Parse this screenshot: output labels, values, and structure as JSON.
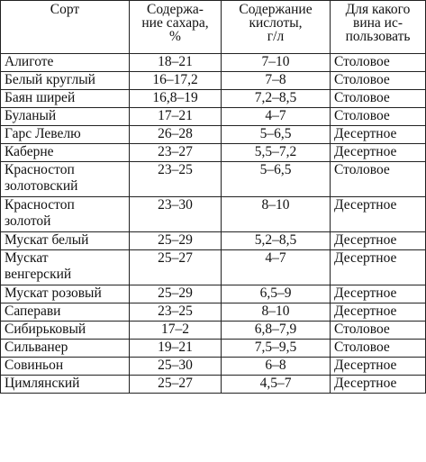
{
  "headers": {
    "variety": "Сорт",
    "sugar": "Содержа-\nние сахара,\n%",
    "acid": "Содержание\nкислоты,\nг/л",
    "wine": "Для какого\nвина ис-\nпользовать"
  },
  "rows": [
    {
      "variety": "Алиготе",
      "sugar": "18–21",
      "acid": "7–10",
      "wine": "Столовое"
    },
    {
      "variety": "Белый круглый",
      "sugar": "16–17,2",
      "acid": "7–8",
      "wine": "Столовое"
    },
    {
      "variety": "Баян ширей",
      "sugar": "16,8–19",
      "acid": "7,2–8,5",
      "wine": "Столовое"
    },
    {
      "variety": "Буланый",
      "sugar": "17–21",
      "acid": "4–7",
      "wine": "Столовое"
    },
    {
      "variety": "Гарс Левелю",
      "sugar": "26–28",
      "acid": "5–6,5",
      "wine": "Десертное"
    },
    {
      "variety": "Каберне",
      "sugar": "23–27",
      "acid": "5,5–7,2",
      "wine": "Десертное"
    },
    {
      "variety": "Красностоп\nзолотовский",
      "sugar": "23–25",
      "acid": "5–6,5",
      "wine": "Столовое"
    },
    {
      "variety": "Красностоп\nзолотой",
      "sugar": "23–30",
      "acid": "8–10",
      "wine": "Десертное"
    },
    {
      "variety": "Мускат белый",
      "sugar": "25–29",
      "acid": "5,2–8,5",
      "wine": "Десертное"
    },
    {
      "variety": "Мускат\nвенгерский",
      "sugar": "25–27",
      "acid": "4–7",
      "wine": "Десертное"
    },
    {
      "variety": "Мускат розовый",
      "sugar": "25–29",
      "acid": "6,5–9",
      "wine": "Десертное"
    },
    {
      "variety": "Саперави",
      "sugar": "23–25",
      "acid": "8–10",
      "wine": "Десертное"
    },
    {
      "variety": "Сибирьковый",
      "sugar": "17–2",
      "acid": "6,8–7,9",
      "wine": "Столовое"
    },
    {
      "variety": "Сильванер",
      "sugar": "19–21",
      "acid": "7,5–9,5",
      "wine": "Столовое"
    },
    {
      "variety": "Совиньон",
      "sugar": "25–30",
      "acid": "6–8",
      "wine": "Десертное"
    },
    {
      "variety": "Цимлянский",
      "sugar": "25–27",
      "acid": "4,5–7",
      "wine": "Десертное"
    }
  ]
}
